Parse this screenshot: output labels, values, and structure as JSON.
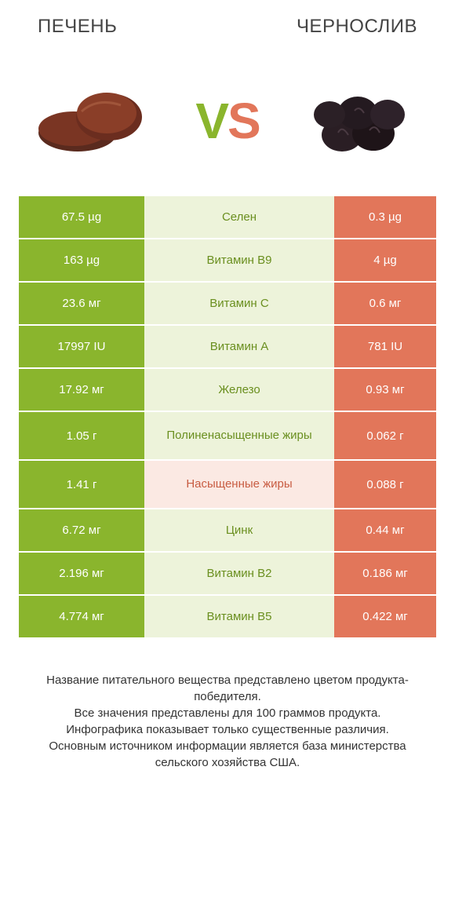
{
  "header": {
    "left_title": "ПЕЧЕНЬ",
    "right_title": "ЧЕРНОСЛИВ",
    "vs_v": "V",
    "vs_s": "S"
  },
  "colors": {
    "green": "#8ab52d",
    "orange": "#e2765a",
    "mid_tint_green": "#edf3da",
    "mid_tint_orange": "#fbe9e3",
    "text_green": "#6a8f1f",
    "text_orange": "#c85c42",
    "left_light": "#9bbe4c"
  },
  "rows": [
    {
      "left": "67.5 µg",
      "label": "Селен",
      "right": "0.3 µg",
      "winner": "left",
      "tall": false
    },
    {
      "left": "163 µg",
      "label": "Витамин B9",
      "right": "4 µg",
      "winner": "left",
      "tall": false
    },
    {
      "left": "23.6 мг",
      "label": "Витамин C",
      "right": "0.6 мг",
      "winner": "left",
      "tall": false
    },
    {
      "left": "17997 IU",
      "label": "Витамин A",
      "right": "781 IU",
      "winner": "left",
      "tall": false
    },
    {
      "left": "17.92 мг",
      "label": "Железо",
      "right": "0.93 мг",
      "winner": "left",
      "tall": false
    },
    {
      "left": "1.05 г",
      "label": "Полиненасыщенные жиры",
      "right": "0.062 г",
      "winner": "left",
      "tall": true
    },
    {
      "left": "1.41 г",
      "label": "Насыщенные жиры",
      "right": "0.088 г",
      "winner": "right",
      "tall": true
    },
    {
      "left": "6.72 мг",
      "label": "Цинк",
      "right": "0.44 мг",
      "winner": "left",
      "tall": false
    },
    {
      "left": "2.196 мг",
      "label": "Витамин B2",
      "right": "0.186 мг",
      "winner": "left",
      "tall": false
    },
    {
      "left": "4.774 мг",
      "label": "Витамин B5",
      "right": "0.422 мг",
      "winner": "left",
      "tall": false
    }
  ],
  "footnote": {
    "l1": "Название питательного вещества представлено цветом продукта-победителя.",
    "l2": "Все значения представлены для 100 граммов продукта.",
    "l3": "Инфографика показывает только существенные различия.",
    "l4": "Основным источником информации является база министерства сельского хозяйства США."
  }
}
